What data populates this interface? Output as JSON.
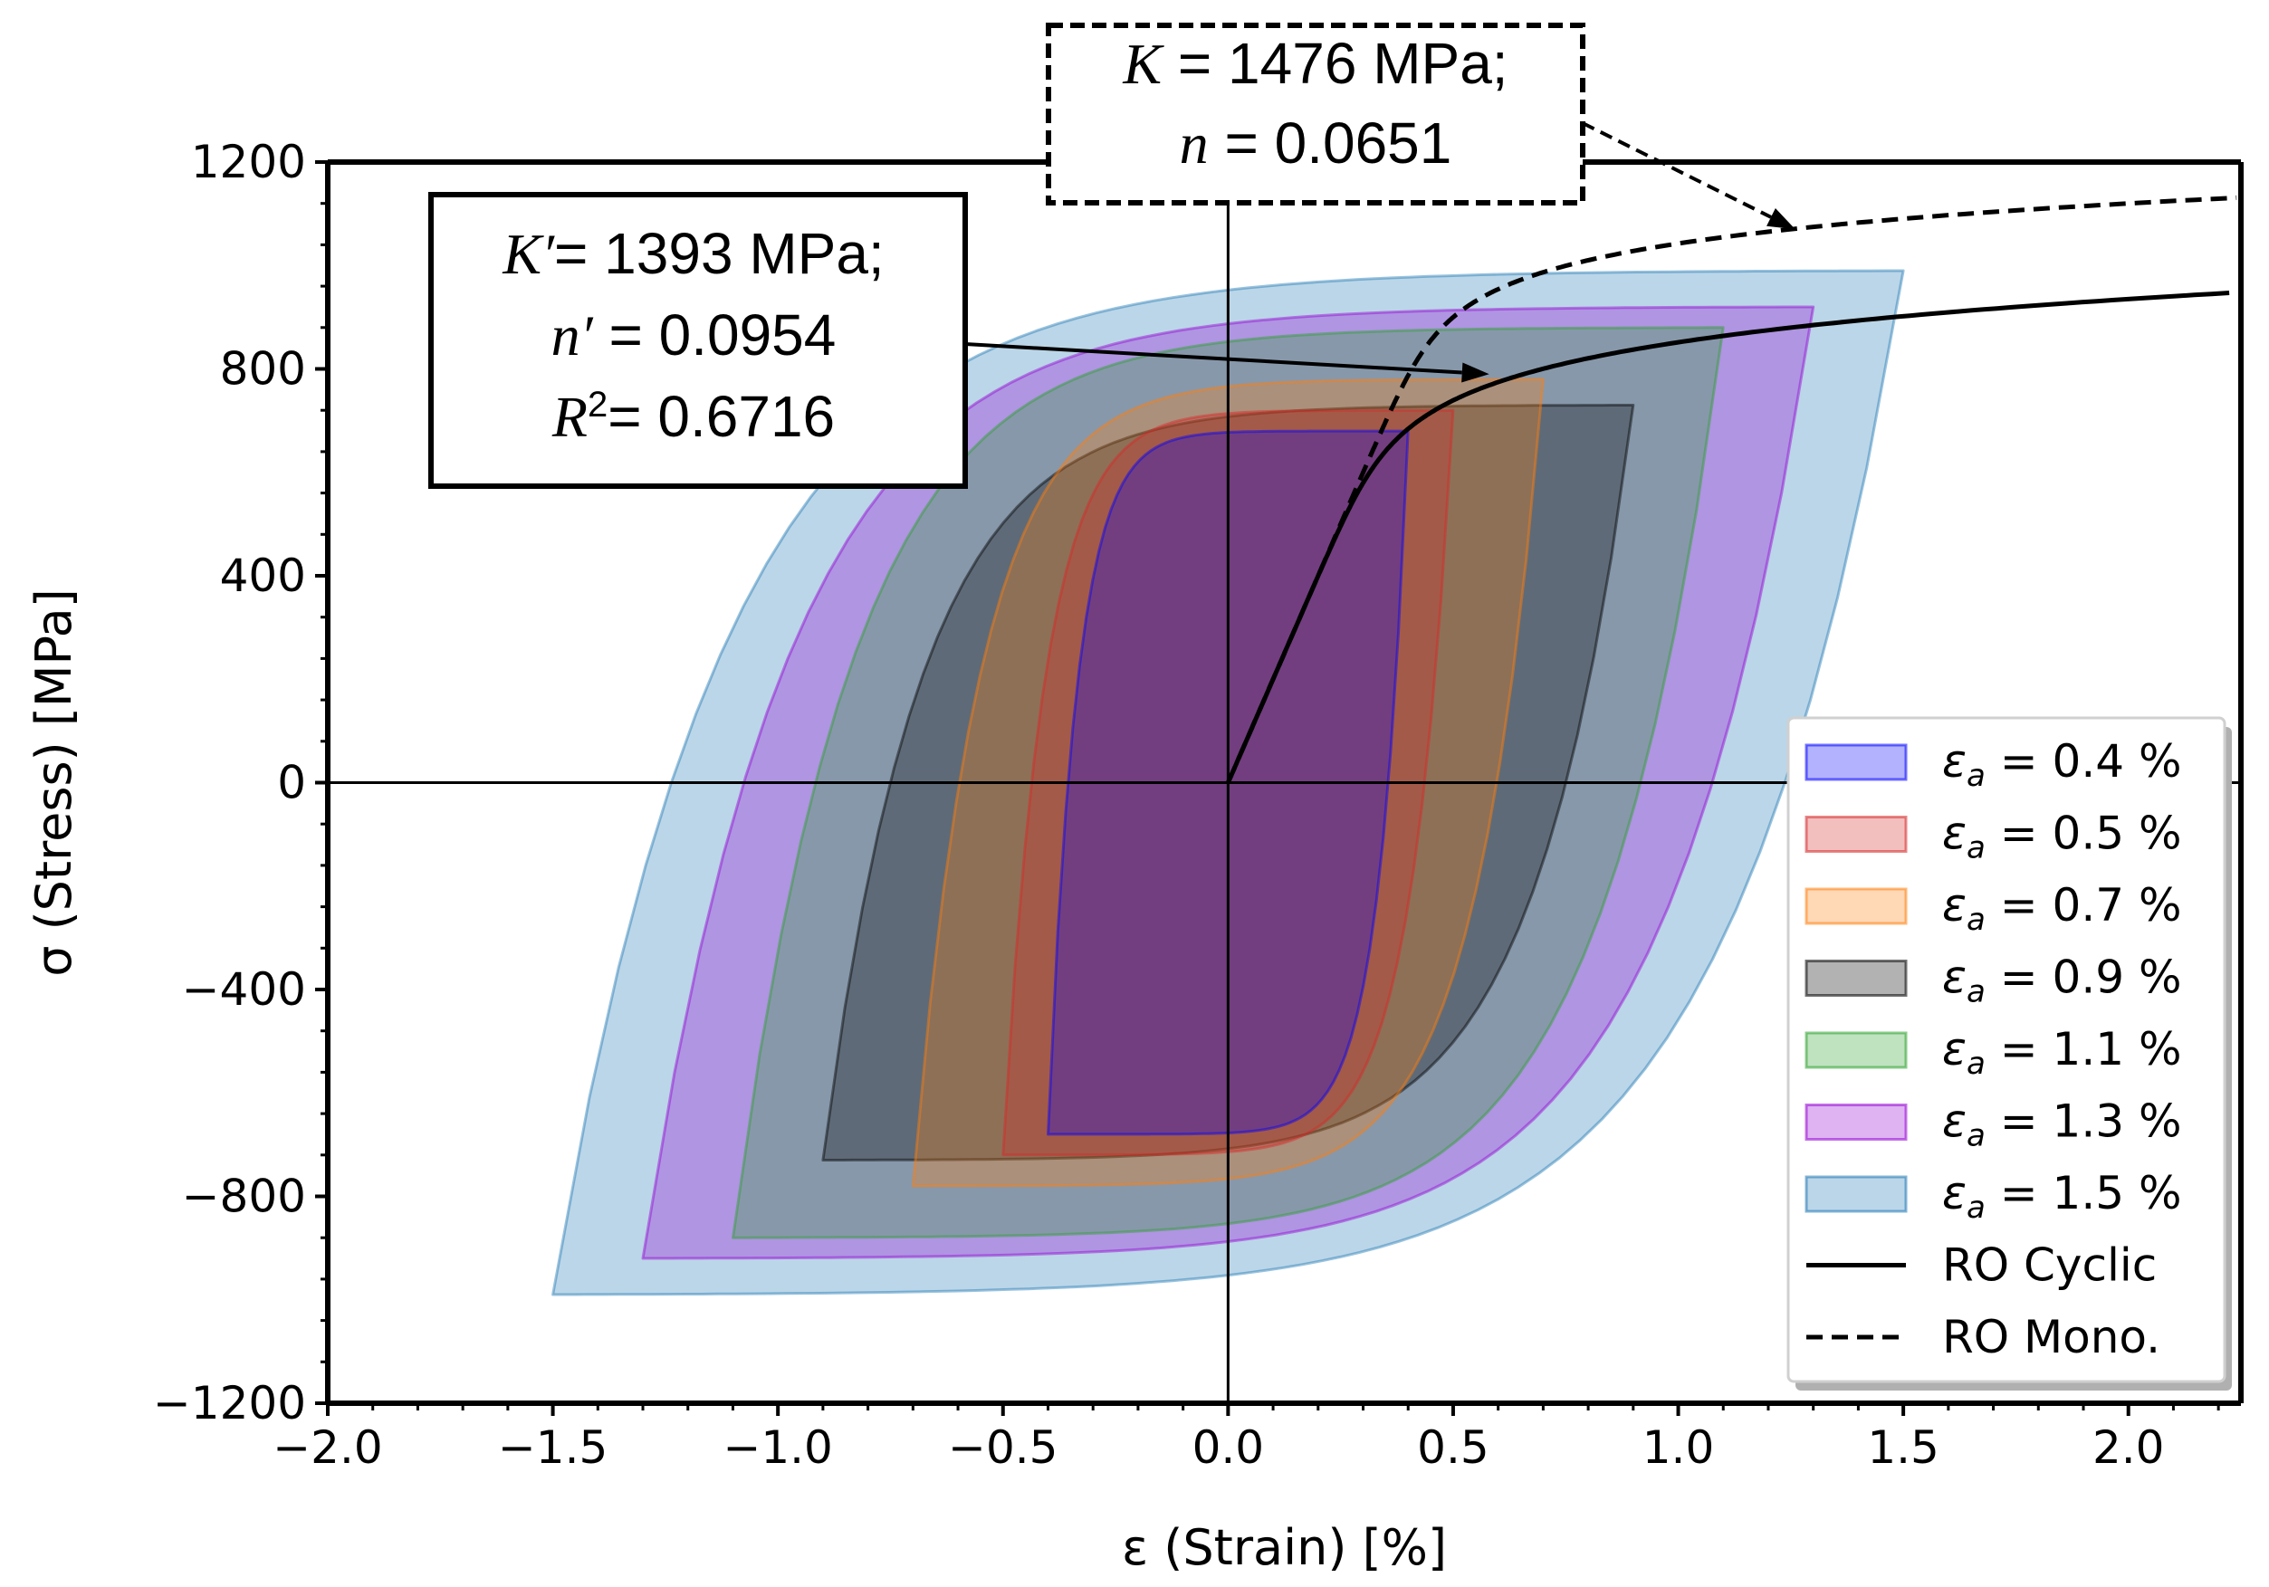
{
  "chart_data": {
    "type": "line",
    "title": "",
    "xlabel": "ε (Strain) [%]",
    "ylabel": "σ (Stress) [MPa]",
    "xlim": [
      -2.0,
      2.25
    ],
    "ylim": [
      -1200,
      1200
    ],
    "xticks": [
      -2.0,
      -1.5,
      -1.0,
      -0.5,
      0.0,
      0.5,
      1.0,
      1.5,
      2.0
    ],
    "yticks": [
      -1200,
      -800,
      -400,
      0,
      400,
      800,
      1200
    ],
    "xtick_labels": [
      "−2.0",
      "−1.5",
      "−1.0",
      "−0.5",
      "0.0",
      "0.5",
      "1.0",
      "1.5",
      "2.0"
    ],
    "ytick_labels": [
      "−1200",
      "−800",
      "−400",
      "0",
      "400",
      "800",
      "1200"
    ],
    "grid": false,
    "legend_position": "bottom-right",
    "series": [
      {
        "name": "ε_a = 0.4 %",
        "legend_sym": "ε",
        "legend_sub": "a",
        "legend_rest": " = 0.4 %",
        "type": "hysteresis",
        "amplitude": 0.4,
        "peak_stress": 680,
        "color": "#0000ff"
      },
      {
        "name": "ε_a = 0.5 %",
        "legend_sym": "ε",
        "legend_sub": "a",
        "legend_rest": " = 0.5 %",
        "type": "hysteresis",
        "amplitude": 0.5,
        "peak_stress": 720,
        "color": "#d62728"
      },
      {
        "name": "ε_a = 0.7 %",
        "legend_sym": "ε",
        "legend_sub": "a",
        "legend_rest": " = 0.7 %",
        "type": "hysteresis",
        "amplitude": 0.7,
        "peak_stress": 780,
        "color": "#ff7f0e"
      },
      {
        "name": "ε_a = 0.9 %",
        "legend_sym": "ε",
        "legend_sub": "a",
        "legend_rest": " = 0.9 %",
        "type": "hysteresis",
        "amplitude": 0.9,
        "peak_stress": 730,
        "color": "#000000"
      },
      {
        "name": "ε_a = 1.1 %",
        "legend_sym": "ε",
        "legend_sub": "a",
        "legend_rest": " = 1.1 %",
        "type": "hysteresis",
        "amplitude": 1.1,
        "peak_stress": 880,
        "color": "#2ca02c"
      },
      {
        "name": "ε_a = 1.3 %",
        "legend_sym": "ε",
        "legend_sub": "a",
        "legend_rest": " = 1.3 %",
        "type": "hysteresis",
        "amplitude": 1.3,
        "peak_stress": 920,
        "color": "#9400d3"
      },
      {
        "name": "ε_a = 1.5 %",
        "legend_sym": "ε",
        "legend_sub": "a",
        "legend_rest": " = 1.5 %",
        "type": "hysteresis",
        "amplitude": 1.5,
        "peak_stress": 990,
        "color": "#1f77b4"
      },
      {
        "name": "RO Cyclic",
        "type": "ramberg-osgood",
        "K": 1393,
        "n": 0.0954,
        "E": 200000,
        "style": "solid",
        "color": "#000000"
      },
      {
        "name": "RO Mono.",
        "type": "ramberg-osgood",
        "K": 1476,
        "n": 0.0651,
        "E": 200000,
        "style": "dashed",
        "color": "#000000"
      }
    ],
    "annotations": [
      {
        "id": "mono",
        "lines": [
          {
            "pre_ital": "K",
            "text": " = 1476 MPa;"
          },
          {
            "pre_ital": "n",
            "text": " = 0.0651"
          }
        ],
        "box_style": "dashed",
        "arrow_to": [
          1.26,
          1070
        ]
      },
      {
        "id": "cyclic",
        "lines": [
          {
            "pre_ital": "K′",
            "text": "= 1393 MPa;"
          },
          {
            "pre_ital": "n′",
            "text": " = 0.0954"
          },
          {
            "pre_ital": "R",
            "sup": "2",
            "text": "= 0.6716"
          }
        ],
        "box_style": "solid",
        "arrow_to": [
          0.58,
          790
        ]
      }
    ]
  }
}
